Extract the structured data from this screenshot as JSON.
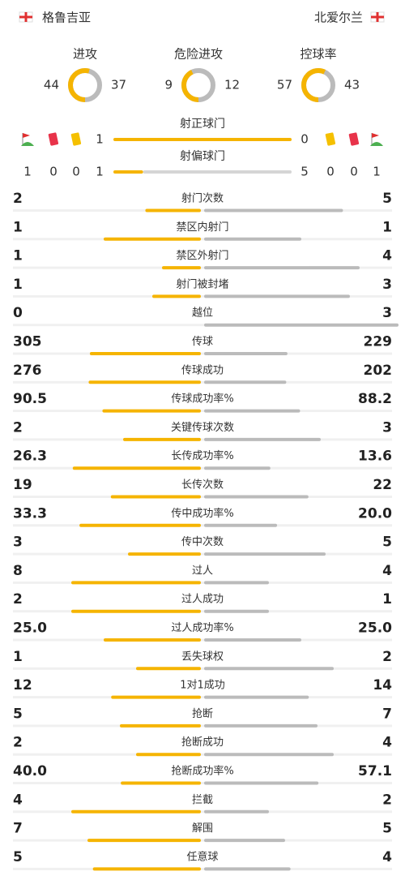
{
  "header": {
    "home": "格鲁吉亚",
    "away": "北爱尔兰"
  },
  "rings": [
    {
      "label": "进攻",
      "home": 44,
      "away": 37
    },
    {
      "label": "危险进攻",
      "home": 9,
      "away": 12
    },
    {
      "label": "控球率",
      "home": 57,
      "away": 43
    }
  ],
  "cards": {
    "home": {
      "corners": 1,
      "red": 0,
      "yellow": 0
    },
    "away": {
      "corners": 1,
      "red": 0,
      "yellow": 0
    }
  },
  "shots": [
    {
      "label": "射正球门",
      "home": 1,
      "away": 0
    },
    {
      "label": "射偏球门",
      "home": 1,
      "away": 5
    }
  ],
  "stats": [
    {
      "label": "射门次数",
      "home": 2,
      "away": 5
    },
    {
      "label": "禁区内射门",
      "home": 1,
      "away": 1
    },
    {
      "label": "禁区外射门",
      "home": 1,
      "away": 4
    },
    {
      "label": "射门被封堵",
      "home": 1,
      "away": 3
    },
    {
      "label": "越位",
      "home": 0,
      "away": 3
    },
    {
      "label": "传球",
      "home": 305,
      "away": 229
    },
    {
      "label": "传球成功",
      "home": 276,
      "away": 202
    },
    {
      "label": "传球成功率%",
      "home": 90.5,
      "away": 88.2
    },
    {
      "label": "关键传球次数",
      "home": 2,
      "away": 3
    },
    {
      "label": "长传成功率%",
      "home": 26.3,
      "away": 13.6
    },
    {
      "label": "长传次数",
      "home": 19,
      "away": 22
    },
    {
      "label": "传中成功率%",
      "home": 33.3,
      "away": 20,
      "away_label": "20.0"
    },
    {
      "label": "传中次数",
      "home": 3,
      "away": 5
    },
    {
      "label": "过人",
      "home": 8,
      "away": 4
    },
    {
      "label": "过人成功",
      "home": 2,
      "away": 1
    },
    {
      "label": "过人成功率%",
      "home": 25,
      "home_label": "25.0",
      "away": 25,
      "away_label": "25.0"
    },
    {
      "label": "丢失球权",
      "home": 1,
      "away": 2
    },
    {
      "label": "1对1成功",
      "home": 12,
      "away": 14
    },
    {
      "label": "抢断",
      "home": 5,
      "away": 7
    },
    {
      "label": "抢断成功",
      "home": 2,
      "away": 4
    },
    {
      "label": "抢断成功率%",
      "home": 40,
      "home_label": "40.0",
      "away": 57.1
    },
    {
      "label": "拦截",
      "home": 4,
      "away": 2
    },
    {
      "label": "解围",
      "home": 7,
      "away": 5
    },
    {
      "label": "任意球",
      "home": 5,
      "away": 4
    }
  ]
}
